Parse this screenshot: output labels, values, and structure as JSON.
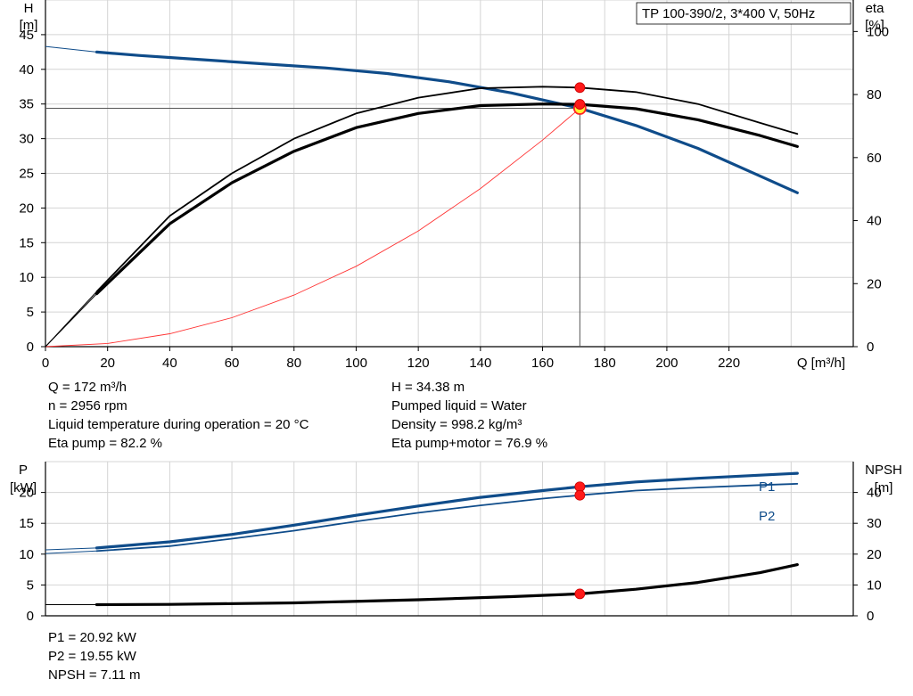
{
  "chart_data": [
    {
      "type": "line",
      "title": "TP 100-390/2, 3*400 V, 50Hz",
      "xlabel": "Q [m³/h]",
      "ylabel_top": "H",
      "ylabel_unit": "[m]",
      "y2label_top": "eta",
      "y2label_unit": "[%]",
      "xlim": [
        0,
        260
      ],
      "ylim": [
        0,
        50
      ],
      "y2lim": [
        0,
        110
      ],
      "x_ticks": [
        "0",
        "20",
        "40",
        "60",
        "80",
        "100",
        "120",
        "140",
        "160",
        "180",
        "200",
        "220"
      ],
      "y_ticks": [
        "0",
        "5",
        "10",
        "15",
        "20",
        "25",
        "30",
        "35",
        "40",
        "45"
      ],
      "y2_ticks": [
        "0",
        "20",
        "40",
        "60",
        "80",
        "100"
      ],
      "grid": true,
      "series": [
        {
          "key": "H",
          "color": "#0f4c8a",
          "x": [
            0,
            16.5,
            30,
            50,
            70,
            90,
            110,
            130,
            150,
            172,
            190,
            210,
            230,
            242
          ],
          "y": [
            43.3,
            42.5,
            42.0,
            41.4,
            40.8,
            40.2,
            39.4,
            38.2,
            36.6,
            34.38,
            31.9,
            28.6,
            24.6,
            22.2
          ]
        },
        {
          "key": "eta_pump",
          "color": "#000000",
          "x": [
            0,
            16.5,
            40,
            60,
            80,
            100,
            120,
            140,
            160,
            172,
            190,
            210,
            230,
            242
          ],
          "y": [
            0,
            17.5,
            41.5,
            55,
            66,
            74,
            79,
            82,
            82.5,
            82.2,
            80.8,
            77,
            71,
            67.5
          ]
        },
        {
          "key": "eta_pumpmotor",
          "color": "#000000",
          "x": [
            0,
            16.5,
            40,
            60,
            80,
            100,
            120,
            140,
            160,
            172,
            190,
            210,
            230,
            242
          ],
          "y": [
            0,
            16.8,
            39,
            52,
            62,
            69.5,
            74,
            76.5,
            77,
            76.9,
            75.5,
            72,
            67,
            63.5
          ]
        },
        {
          "key": "system_curve",
          "color": "#ff3333",
          "x": [
            0,
            20,
            40,
            60,
            80,
            100,
            120,
            140,
            160,
            172
          ],
          "y": [
            0,
            0.46,
            1.86,
            4.18,
            7.44,
            11.6,
            16.7,
            22.8,
            29.8,
            34.38
          ]
        }
      ],
      "duty_point": {
        "Q": 172,
        "H": 34.38,
        "eta_pump": 82.2,
        "eta_pumpmotor": 76.9
      }
    },
    {
      "type": "line",
      "ylabel_top": "P",
      "ylabel_unit": "[kW]",
      "y2label_top": "NPSH",
      "y2label_unit": "[m]",
      "xlim": [
        0,
        260
      ],
      "ylim": [
        0,
        25
      ],
      "y2lim": [
        0,
        50
      ],
      "y_ticks": [
        "0",
        "5",
        "10",
        "15",
        "20"
      ],
      "y2_ticks": [
        "0",
        "10",
        "20",
        "30",
        "40"
      ],
      "grid": true,
      "series": [
        {
          "name": "P1",
          "color": "#0f4c8a",
          "x": [
            0,
            16.5,
            40,
            60,
            80,
            100,
            120,
            140,
            160,
            172,
            190,
            210,
            230,
            242
          ],
          "y": [
            10.7,
            11.0,
            12.0,
            13.2,
            14.7,
            16.3,
            17.8,
            19.2,
            20.3,
            20.92,
            21.7,
            22.3,
            22.8,
            23.1
          ]
        },
        {
          "name": "P2",
          "color": "#0f4c8a",
          "x": [
            0,
            16.5,
            40,
            60,
            80,
            100,
            120,
            140,
            160,
            172,
            190,
            210,
            230,
            242
          ],
          "y": [
            10.1,
            10.5,
            11.3,
            12.5,
            13.8,
            15.3,
            16.7,
            17.9,
            19.0,
            19.55,
            20.3,
            20.8,
            21.2,
            21.4
          ]
        },
        {
          "key": "npsh",
          "color": "#000000",
          "x": [
            0,
            16.5,
            40,
            80,
            120,
            150,
            172,
            190,
            210,
            230,
            242
          ],
          "y": [
            3.6,
            3.6,
            3.7,
            4.2,
            5.2,
            6.2,
            7.11,
            8.6,
            10.8,
            14.0,
            16.6
          ]
        }
      ]
    }
  ],
  "info_top_left": [
    "Q = 172 m³/h",
    "n = 2956 rpm",
    "Liquid temperature during operation = 20 °C",
    "Eta pump = 82.2 %"
  ],
  "info_top_right": [
    "H = 34.38 m",
    "Pumped liquid = Water",
    "Density = 998.2 kg/m³",
    "Eta pump+motor = 76.9 %"
  ],
  "info_bottom": [
    "P1 = 20.92 kW",
    "P2 = 19.55 kW",
    "NPSH = 7.11 m"
  ]
}
